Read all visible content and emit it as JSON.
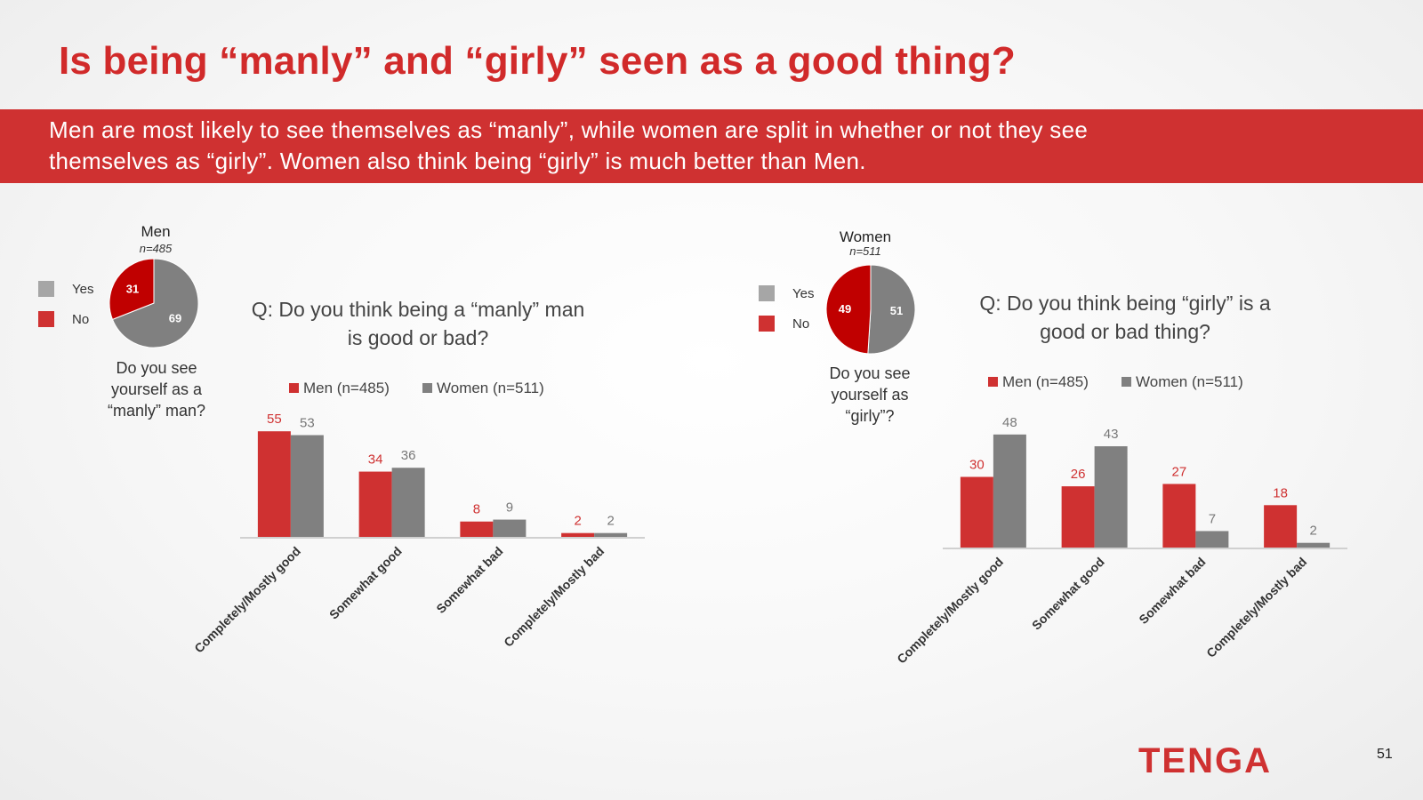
{
  "title": "Is being “manly” and “girly” seen as a good thing?",
  "banner": {
    "line1": "Men are most likely to see themselves as “manly”, while women are split in whether or not they see",
    "line2": "themselves as “girly”. Women also think being “girly” is much better than Men."
  },
  "colors": {
    "red": "#cf3131",
    "dark_red": "#c00000",
    "gray": "#808080",
    "light_gray": "#a6a6a6"
  },
  "men_pie": {
    "title": "Men",
    "n": "n=485",
    "legend": [
      "Yes",
      "No"
    ],
    "question_lines": [
      "Do you see",
      "yourself as a",
      "“manly” man?"
    ]
  },
  "women_pie": {
    "title": "Women",
    "n": "n=511",
    "legend": [
      "Yes",
      "No"
    ],
    "question_lines": [
      "Do you see",
      "yourself as",
      "“girly”?"
    ]
  },
  "manly_chart": {
    "question_lines": [
      "Q: Do you think being a “manly” man",
      "is good or bad?"
    ]
  },
  "girly_chart": {
    "question_lines": [
      "Q: Do you think being “girly” is a",
      "good or bad thing?"
    ]
  },
  "logo_text": "TENGA",
  "page_number": "51",
  "chart_data": [
    {
      "type": "pie",
      "title": "Men",
      "subtitle": "n=485",
      "labels": [
        "Yes",
        "No"
      ],
      "values": [
        69,
        31
      ],
      "colors": [
        "#808080",
        "#c00000"
      ]
    },
    {
      "type": "bar",
      "title": "Q: Do you think being a “manly” man is good or bad?",
      "categories": [
        "Completely/Mostly good",
        "Somewhat good",
        "Somewhat bad",
        "Completely/Mostly bad"
      ],
      "series": [
        {
          "name": "Men (n=485)",
          "values": [
            55,
            34,
            8,
            2
          ],
          "color": "#cf3131"
        },
        {
          "name": "Women (n=511)",
          "values": [
            53,
            36,
            9,
            2
          ],
          "color": "#808080"
        }
      ],
      "legend": "top",
      "ylim": [
        0,
        60
      ],
      "grid": false
    },
    {
      "type": "pie",
      "title": "Women",
      "subtitle": "n=511",
      "labels": [
        "Yes",
        "No"
      ],
      "values": [
        51,
        49
      ],
      "colors": [
        "#808080",
        "#c00000"
      ]
    },
    {
      "type": "bar",
      "title": "Q: Do you think being “girly” is a good or bad thing?",
      "categories": [
        "Completely/Mostly good",
        "Somewhat good",
        "Somewhat bad",
        "Completely/Mostly bad"
      ],
      "series": [
        {
          "name": "Men (n=485)",
          "values": [
            30,
            26,
            27,
            18
          ],
          "color": "#cf3131"
        },
        {
          "name": "Women (n=511)",
          "values": [
            48,
            43,
            7,
            2
          ],
          "color": "#808080"
        }
      ],
      "legend": "top",
      "ylim": [
        0,
        60
      ],
      "grid": false
    }
  ]
}
